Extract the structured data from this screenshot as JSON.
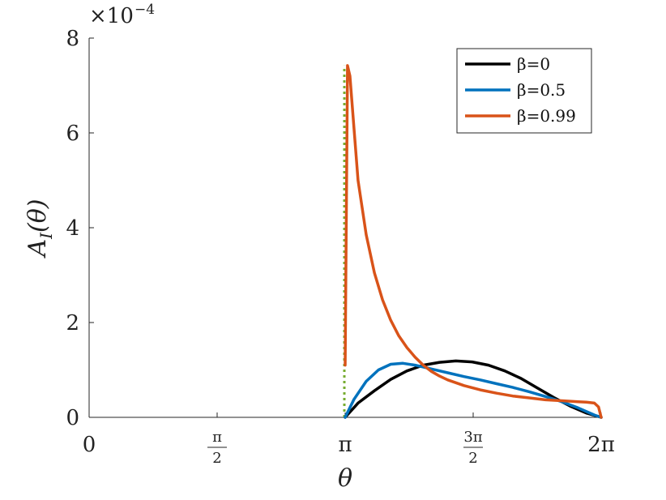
{
  "chart_data": {
    "type": "line",
    "title": "",
    "xlabel": "θ",
    "ylabel": "A_I(θ)",
    "y_exponent_label": "×10",
    "y_exponent_power": "−4",
    "xlim": [
      0,
      6.283185
    ],
    "ylim": [
      0,
      8
    ],
    "x_ticks": [
      {
        "value": 0,
        "label": "0"
      },
      {
        "value": 1.570796,
        "label": "π/2"
      },
      {
        "value": 3.141593,
        "label": "π"
      },
      {
        "value": 4.712389,
        "label": "3π/2"
      },
      {
        "value": 6.283185,
        "label": "2π"
      }
    ],
    "y_ticks": [
      {
        "value": 0,
        "label": "0"
      },
      {
        "value": 2,
        "label": "2"
      },
      {
        "value": 4,
        "label": "4"
      },
      {
        "value": 6,
        "label": "6"
      },
      {
        "value": 8,
        "label": "8"
      }
    ],
    "grid": false,
    "legend_position": "top-right",
    "series": [
      {
        "name": "β=0",
        "color": "#000000",
        "x": [
          3.1416,
          3.3,
          3.5,
          3.7,
          3.9,
          4.1,
          4.3,
          4.5,
          4.7,
          4.9,
          5.1,
          5.3,
          5.5,
          5.7,
          5.9,
          6.1,
          6.2832
        ],
        "y": [
          0.0,
          0.3,
          0.56,
          0.8,
          0.98,
          1.1,
          1.16,
          1.19,
          1.17,
          1.1,
          0.98,
          0.82,
          0.62,
          0.42,
          0.24,
          0.09,
          0.0
        ]
      },
      {
        "name": "β=0.5",
        "color": "#0072BD",
        "x": [
          3.1416,
          3.25,
          3.4,
          3.55,
          3.7,
          3.85,
          4.0,
          4.2,
          4.4,
          4.6,
          4.8,
          5.0,
          5.2,
          5.4,
          5.6,
          5.8,
          6.0,
          6.2,
          6.2832
        ],
        "y": [
          0.0,
          0.38,
          0.76,
          1.0,
          1.12,
          1.14,
          1.1,
          1.02,
          0.94,
          0.86,
          0.79,
          0.71,
          0.63,
          0.54,
          0.44,
          0.33,
          0.2,
          0.05,
          0.0
        ]
      },
      {
        "name": "β=0.99",
        "color": "#D95319",
        "x": [
          3.1416,
          3.17,
          3.2,
          3.25,
          3.3,
          3.4,
          3.5,
          3.6,
          3.7,
          3.8,
          3.9,
          4.0,
          4.1,
          4.2,
          4.3,
          4.4,
          4.6,
          4.8,
          5.0,
          5.2,
          5.4,
          5.6,
          5.8,
          6.0,
          6.1,
          6.2,
          6.25,
          6.2832
        ],
        "y": [
          1.1,
          7.42,
          7.2,
          6.1,
          5.0,
          3.85,
          3.05,
          2.48,
          2.05,
          1.72,
          1.47,
          1.27,
          1.1,
          0.97,
          0.87,
          0.79,
          0.67,
          0.58,
          0.51,
          0.45,
          0.41,
          0.37,
          0.35,
          0.33,
          0.32,
          0.3,
          0.22,
          0.0
        ]
      }
    ],
    "reference_line": {
      "x": 3.1416,
      "y": [
        0,
        7.42
      ],
      "color": "#77AC30",
      "style": "dotted"
    }
  }
}
